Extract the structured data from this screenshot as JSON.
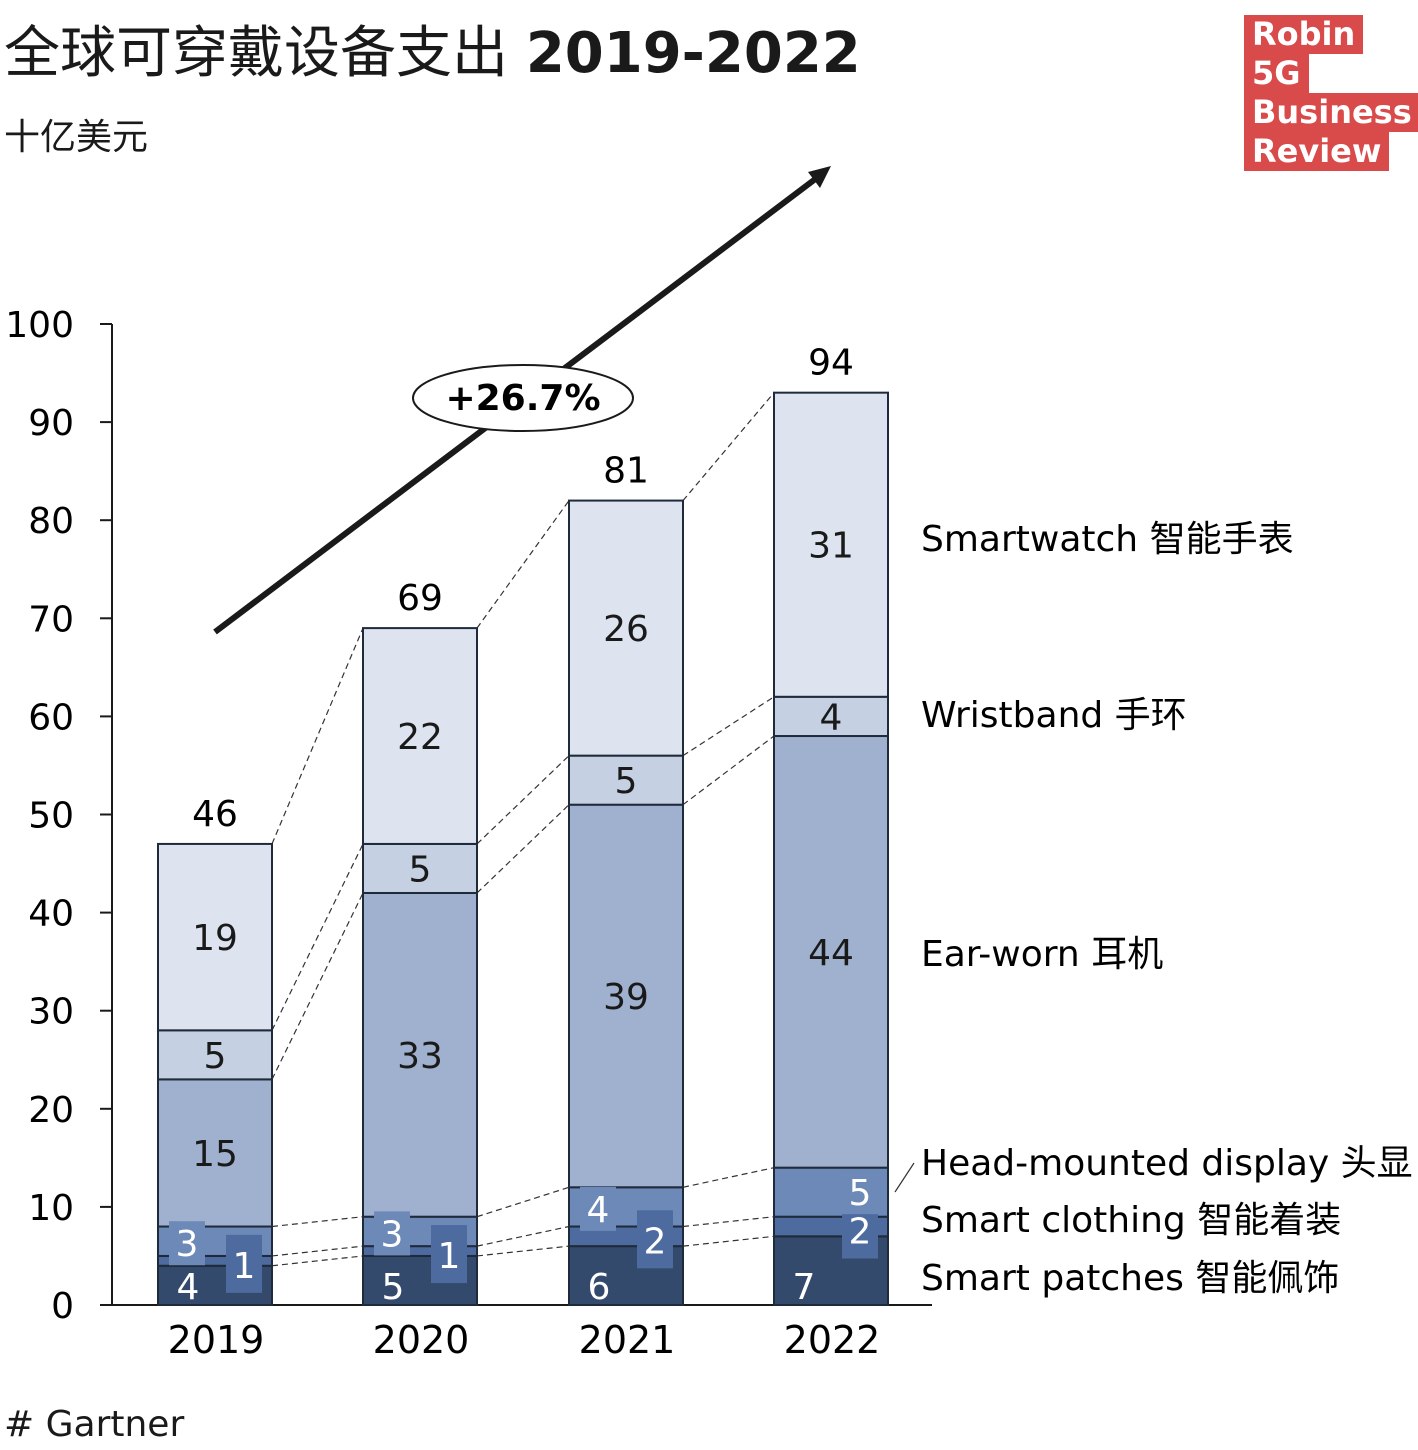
{
  "title_main": "全球可穿戴设备支出",
  "title_years": "2019-2022",
  "subtitle": "十亿美元",
  "source": "# Gartner",
  "logo": [
    "Robin",
    "5G",
    "Business",
    "Review"
  ],
  "colors": {
    "smartwatch": "#dde4ef",
    "wristband": "#c5d1e2",
    "ear_worn": "#9fb1cf",
    "hmd": "#6c89b8",
    "clothing": "#4d6b9f",
    "patches": "#344a6d",
    "logo": "#d94a4a"
  },
  "chart_data": {
    "type": "bar",
    "stacked": true,
    "title": "全球可穿戴设备支出 2019-2022",
    "ylabel": "十亿美元",
    "ylim": [
      0,
      100
    ],
    "yticks": [
      0,
      10,
      20,
      30,
      40,
      50,
      60,
      70,
      80,
      90,
      100
    ],
    "categories": [
      "2019",
      "2020",
      "2021",
      "2022"
    ],
    "series": [
      {
        "name": "Smart patches 智能佩饰",
        "key": "patches",
        "values": [
          4,
          5,
          6,
          7
        ]
      },
      {
        "name": "Smart clothing 智能着装",
        "key": "clothing",
        "values": [
          1,
          1,
          2,
          2
        ]
      },
      {
        "name": "Head-mounted display 头显",
        "key": "hmd",
        "values": [
          3,
          3,
          4,
          5
        ]
      },
      {
        "name": "Ear-worn 耳机",
        "key": "ear_worn",
        "values": [
          15,
          33,
          39,
          44
        ]
      },
      {
        "name": "Wristband 手环",
        "key": "wristband",
        "values": [
          5,
          5,
          5,
          4
        ]
      },
      {
        "name": "Smartwatch 智能手表",
        "key": "smartwatch",
        "values": [
          19,
          22,
          26,
          31
        ]
      }
    ],
    "totals": [
      46,
      69,
      81,
      94
    ],
    "annotation": "+26.7%",
    "legend": "right"
  }
}
